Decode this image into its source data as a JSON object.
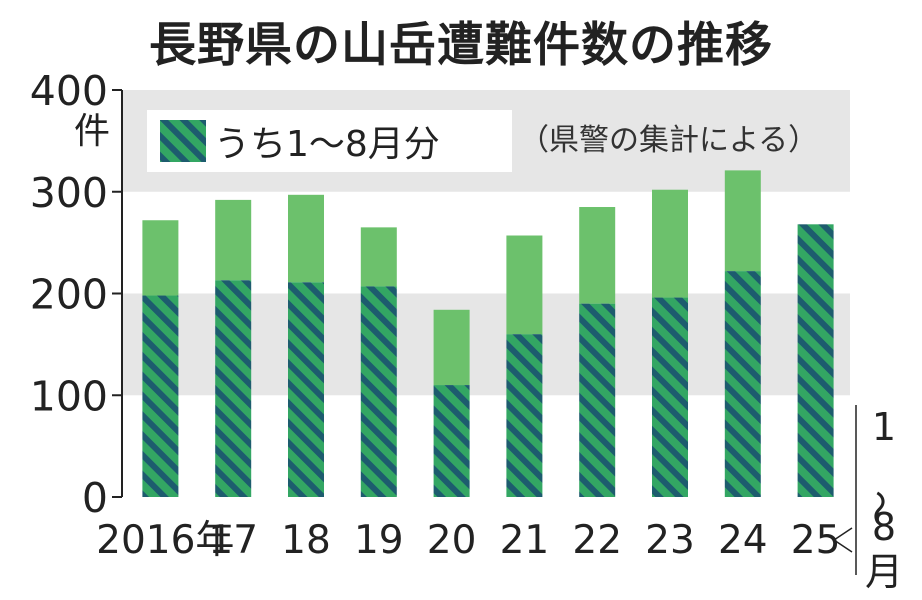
{
  "title": "長野県の山岳遭難件数の推移",
  "chart_data": {
    "type": "bar",
    "stacked": true,
    "y_unit": "件",
    "ylim": [
      0,
      400
    ],
    "yticks": [
      0,
      100,
      200,
      300,
      400
    ],
    "categories": [
      "2016年",
      "17",
      "18",
      "19",
      "20",
      "21",
      "22",
      "23",
      "24",
      "25"
    ],
    "series": [
      {
        "name": "うち1～8月分",
        "values": [
          198,
          213,
          211,
          207,
          110,
          160,
          190,
          196,
          222,
          268
        ],
        "color": "#2e9a5a",
        "pattern": "hatched"
      },
      {
        "name": "",
        "values": [
          74,
          79,
          86,
          58,
          74,
          97,
          95,
          106,
          99,
          0
        ],
        "color": "#6cc16c"
      }
    ],
    "totals": [
      272,
      292,
      297,
      265,
      184,
      257,
      285,
      302,
      321,
      268
    ],
    "legend": {
      "label": "うち1～8月分",
      "placement": "top-left"
    },
    "note": "（県警の集計による）",
    "last_category_note": "1～8月",
    "grid_bands": true
  },
  "colors": {
    "band": "#e6e6e6",
    "hatch_dark": "#1d5c6e",
    "hatch_light": "#33a663",
    "top_fill": "#6cc16c",
    "axis": "#222222"
  }
}
